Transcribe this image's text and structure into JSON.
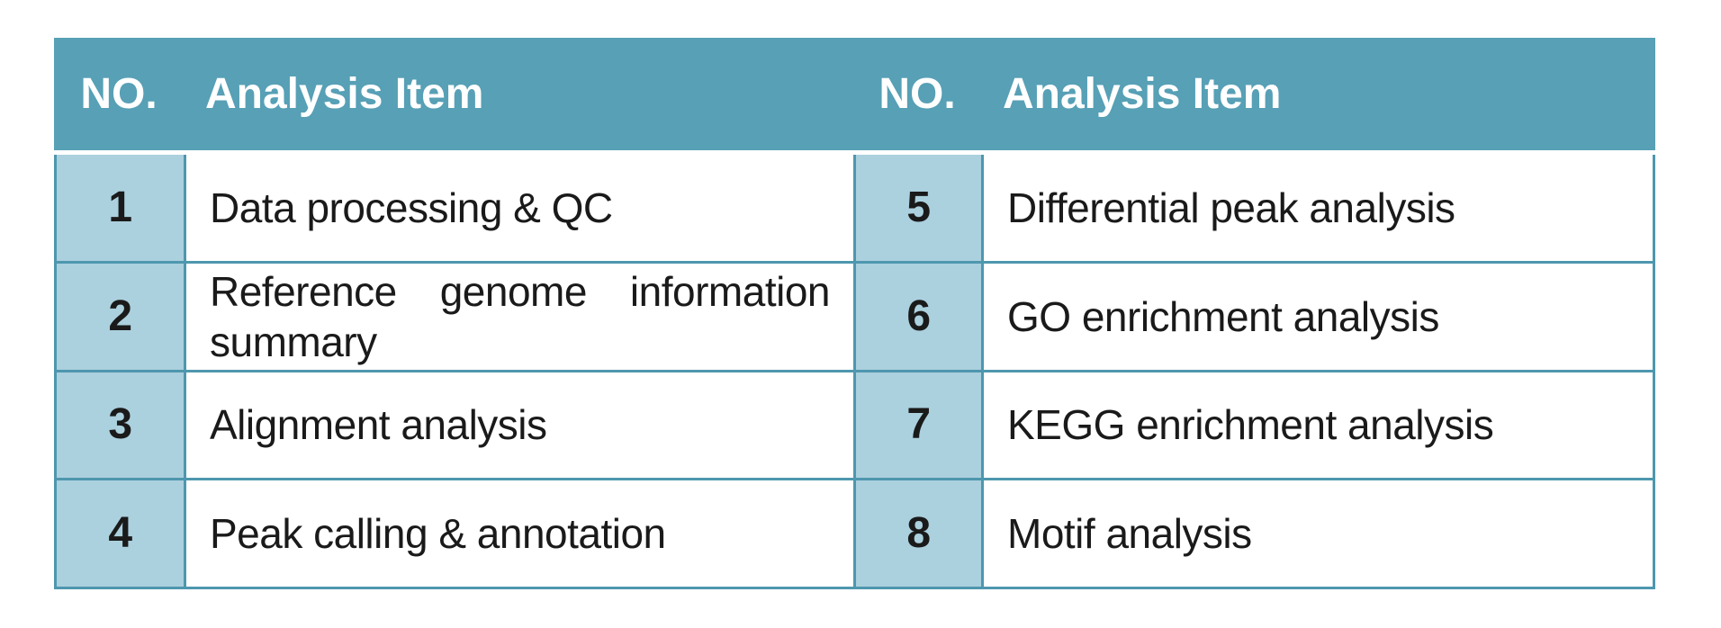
{
  "colors": {
    "header-bg": "#57a0b6",
    "no-cell-bg": "#abd0de",
    "grid-border": "#4e97ae",
    "header-text": "#ffffff",
    "body-text": "#1a1a1a",
    "page-bg": "#ffffff"
  },
  "table": {
    "header_groups": [
      {
        "no": "NO.",
        "item": "Analysis Item"
      },
      {
        "no": "NO.",
        "item": "Analysis Item"
      }
    ],
    "rows": [
      {
        "left_no": "1",
        "left_item": "Data processing & QC",
        "right_no": "5",
        "right_item": "Differential peak analysis"
      },
      {
        "left_no": "2",
        "left_item": "Reference genome information summary",
        "right_no": "6",
        "right_item": "GO enrichment analysis"
      },
      {
        "left_no": "3",
        "left_item": "Alignment analysis",
        "right_no": "7",
        "right_item": "KEGG enrichment analysis"
      },
      {
        "left_no": "4",
        "left_item": "Peak calling & annotation",
        "right_no": "8",
        "right_item": "Motif analysis"
      }
    ]
  }
}
